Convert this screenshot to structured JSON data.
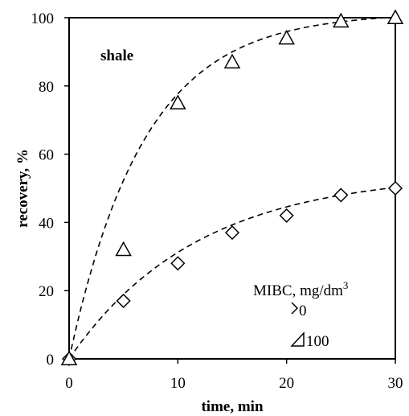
{
  "chart_data": {
    "type": "scatter",
    "title": "",
    "xlabel": "time, min",
    "ylabel": "recovery, %",
    "xlim": [
      0,
      30
    ],
    "ylim": [
      0,
      100
    ],
    "x_ticks": [
      0,
      10,
      20,
      30
    ],
    "y_ticks": [
      0,
      20,
      40,
      60,
      80,
      100
    ],
    "annotation": "shale",
    "legend": {
      "title": "MIBC, mg/dm",
      "title_superscript": "3",
      "placement": "bottom-right"
    },
    "series": [
      {
        "name": "0",
        "marker": "diamond",
        "x": [
          0,
          5,
          10,
          15,
          20,
          25,
          30
        ],
        "y": [
          0,
          17,
          28,
          37,
          42,
          48,
          50
        ]
      },
      {
        "name": "100",
        "marker": "triangle",
        "x": [
          0,
          5,
          10,
          15,
          20,
          25,
          30
        ],
        "y": [
          0,
          32,
          75,
          87,
          94,
          99,
          100
        ]
      }
    ],
    "fit_curves": [
      {
        "series": "0",
        "style": "dashed",
        "equation_max": 54.5,
        "rate": 0.085
      },
      {
        "series": "100",
        "style": "dashed",
        "equation_max": 101.5,
        "rate": 0.145
      }
    ],
    "grid": false,
    "colors": {
      "line": "#000000",
      "background": "#ffffff"
    }
  }
}
